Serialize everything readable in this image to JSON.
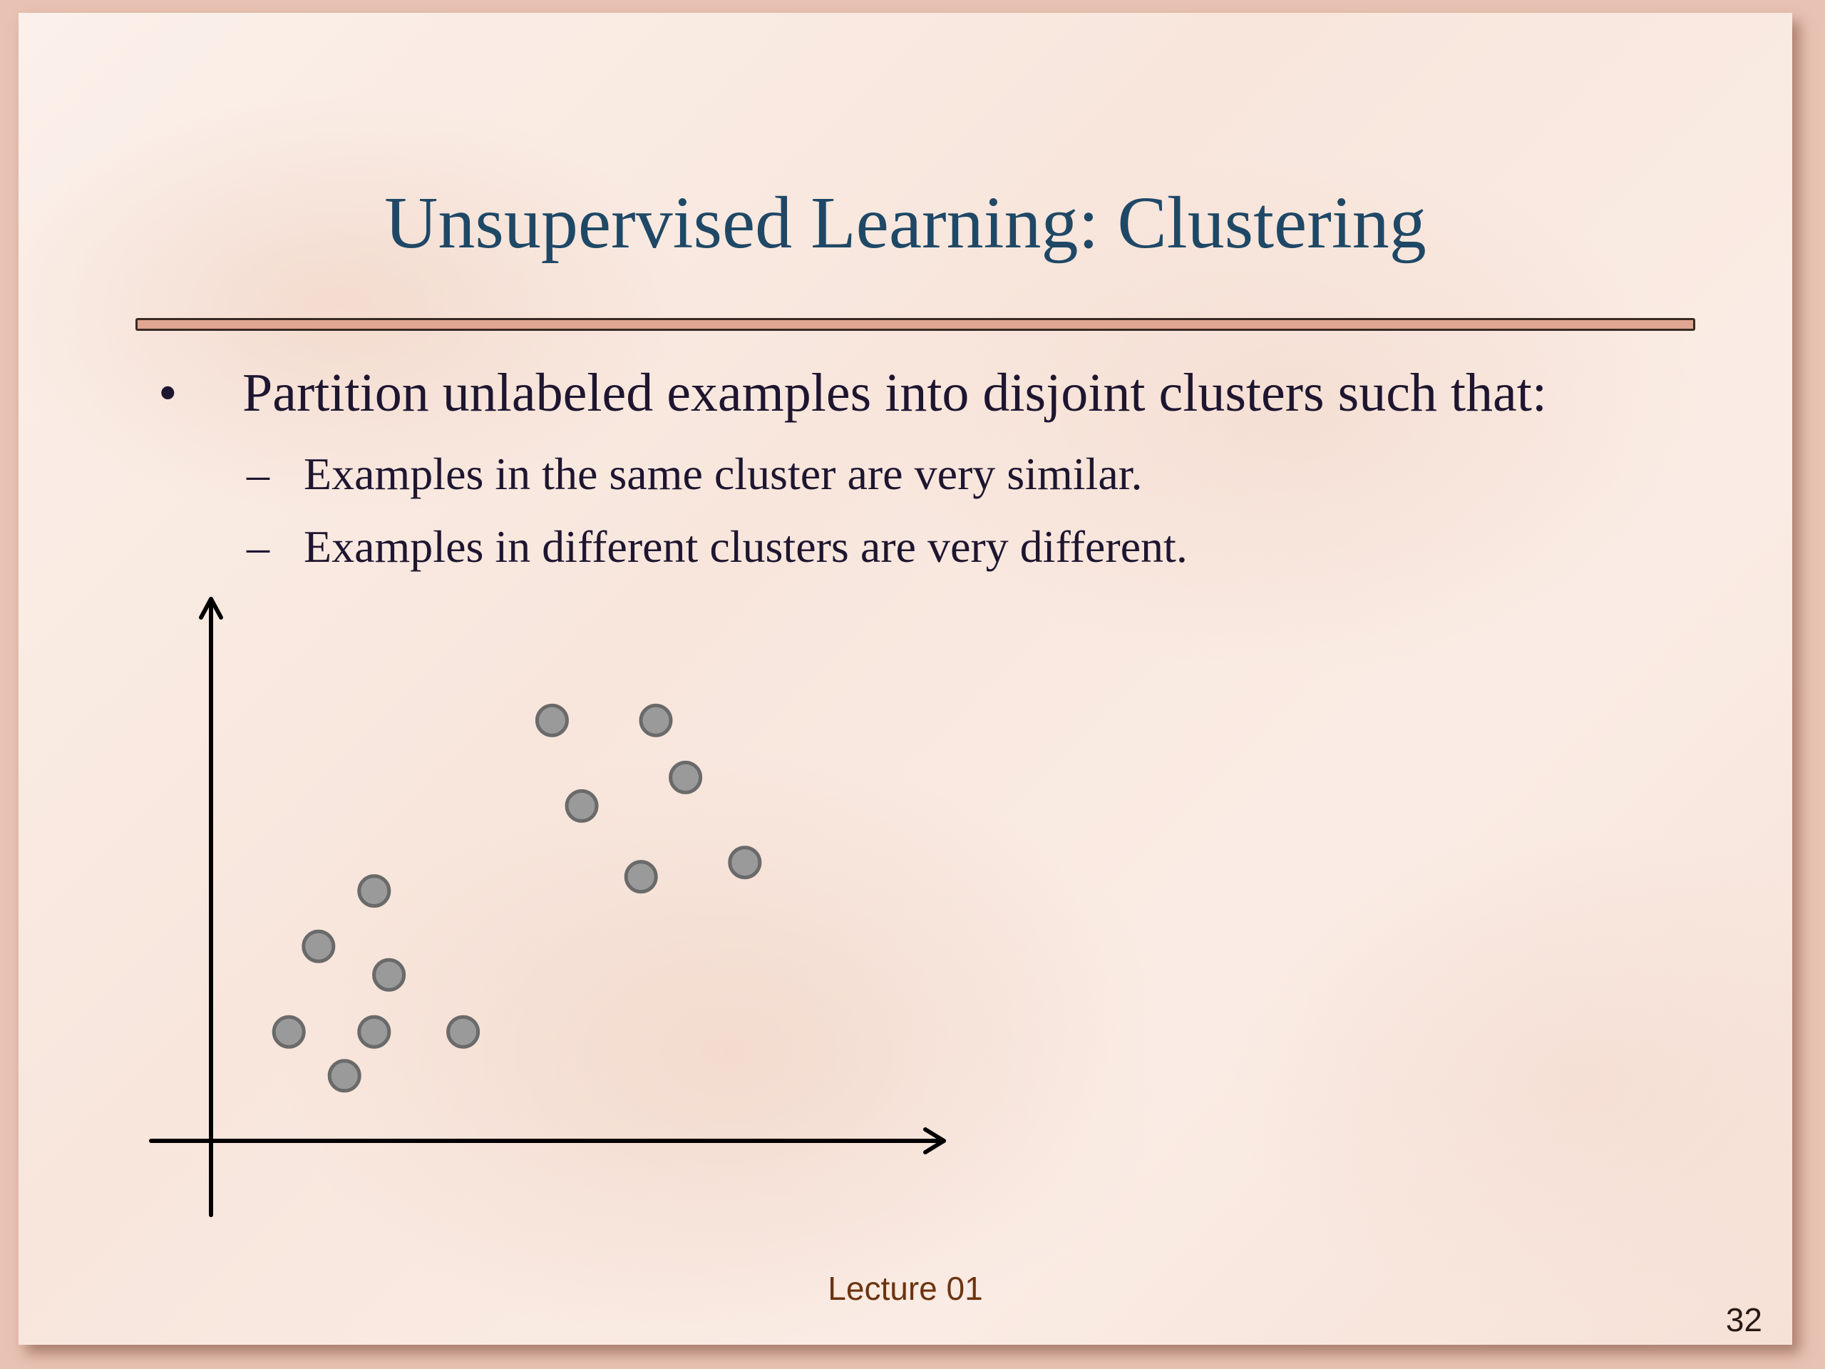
{
  "slide": {
    "title": "Unsupervised Learning: Clustering",
    "bullets": [
      {
        "marker": "•",
        "text": "Partition unlabeled examples into disjoint clusters such that:",
        "sub": [
          {
            "marker": "–",
            "text": "Examples in the same cluster are very similar."
          },
          {
            "marker": "–",
            "text": "Examples in different clusters are very different."
          }
        ]
      }
    ],
    "footer": "Lecture 01",
    "page_number": "32"
  },
  "colors": {
    "title": "#1f4866",
    "rule_fill": "#e0a691",
    "point_fill": "#9a9a9a",
    "point_stroke": "#6a6a6a",
    "axis": "#000000"
  },
  "chart_data": {
    "type": "scatter",
    "title": "",
    "xlabel": "",
    "ylabel": "",
    "grid": false,
    "xlim": [
      0,
      100
    ],
    "ylim": [
      0,
      100
    ],
    "series": [
      {
        "points": [
          [
            10.5,
            19.1
          ],
          [
            22.0,
            19.1
          ],
          [
            34.0,
            19.1
          ],
          [
            14.5,
            34.1
          ],
          [
            24.0,
            29.1
          ],
          [
            22.0,
            43.8
          ],
          [
            18.0,
            11.4
          ]
        ]
      },
      {
        "points": [
          [
            46.0,
            73.7
          ],
          [
            60.0,
            73.7
          ],
          [
            64.0,
            63.7
          ],
          [
            50.0,
            58.7
          ],
          [
            58.0,
            46.3
          ],
          [
            72.0,
            48.8
          ]
        ]
      }
    ]
  }
}
